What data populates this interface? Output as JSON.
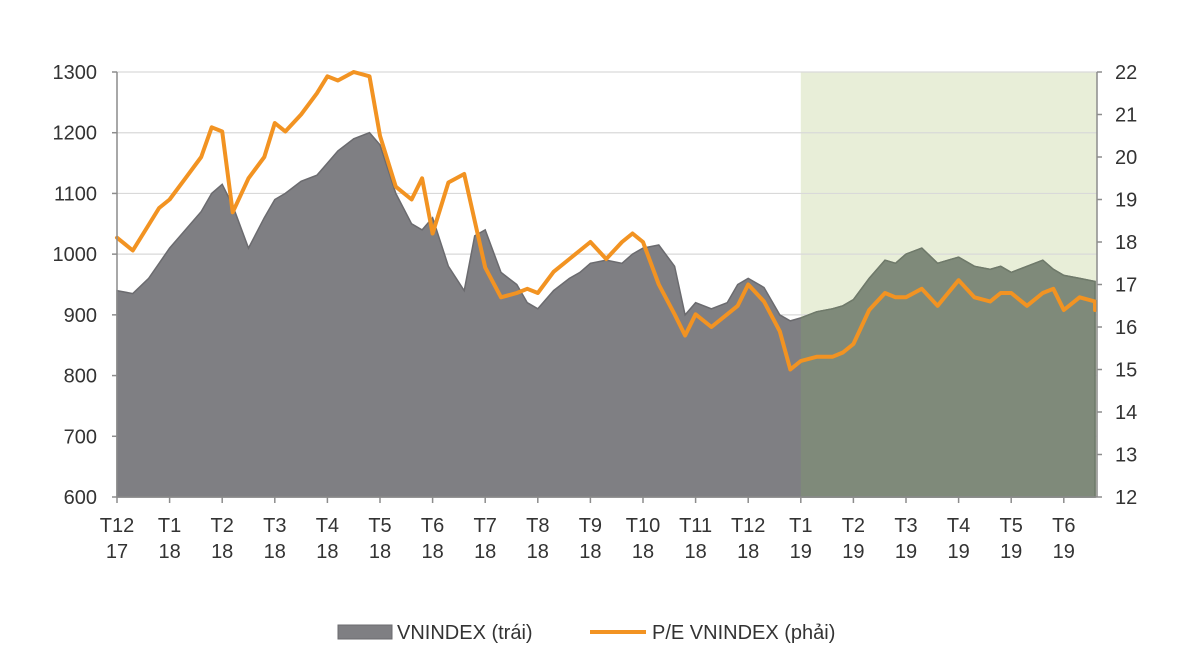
{
  "chart_data": {
    "type": "area",
    "title": "",
    "xlabel": "",
    "ylabel_left": "",
    "ylabel_right": "",
    "ylim_left": [
      600,
      1300
    ],
    "ylim_right": [
      12,
      22
    ],
    "grid": true,
    "legend_position": "bottom-center",
    "highlight_region": {
      "from": "T1 19",
      "to": "end",
      "color": "#e8eed8"
    },
    "colors": {
      "area": "#7f7f83",
      "area_shaded": "#7f8a7a",
      "line": "#f29322",
      "grid": "#d9d9d9",
      "highlight": "#e8eed8"
    },
    "left_axis_ticks": [
      "600",
      "700",
      "800",
      "900",
      "1000",
      "1100",
      "1200",
      "1300"
    ],
    "right_axis_ticks": [
      "12",
      "13",
      "14",
      "15",
      "16",
      "17",
      "18",
      "19",
      "20",
      "21",
      "22"
    ],
    "x_ticks": [
      {
        "line1": "T12",
        "line2": "17"
      },
      {
        "line1": "T1",
        "line2": "18"
      },
      {
        "line1": "T2",
        "line2": "18"
      },
      {
        "line1": "T3",
        "line2": "18"
      },
      {
        "line1": "T4",
        "line2": "18"
      },
      {
        "line1": "T5",
        "line2": "18"
      },
      {
        "line1": "T6",
        "line2": "18"
      },
      {
        "line1": "T7",
        "line2": "18"
      },
      {
        "line1": "T8",
        "line2": "18"
      },
      {
        "line1": "T9",
        "line2": "18"
      },
      {
        "line1": "T10",
        "line2": "18"
      },
      {
        "line1": "T11",
        "line2": "18"
      },
      {
        "line1": "T12",
        "line2": "18"
      },
      {
        "line1": "T1",
        "line2": "19"
      },
      {
        "line1": "T2",
        "line2": "19"
      },
      {
        "line1": "T3",
        "line2": "19"
      },
      {
        "line1": "T4",
        "line2": "19"
      },
      {
        "line1": "T5",
        "line2": "19"
      },
      {
        "line1": "T6",
        "line2": "19"
      }
    ],
    "x_months": [
      0,
      0.3,
      0.6,
      0.8,
      1.0,
      1.3,
      1.6,
      1.8,
      2.0,
      2.2,
      2.5,
      2.8,
      3.0,
      3.2,
      3.5,
      3.8,
      4.0,
      4.2,
      4.5,
      4.8,
      5.0,
      5.3,
      5.6,
      5.8,
      6.0,
      6.3,
      6.6,
      6.8,
      7.0,
      7.3,
      7.6,
      7.8,
      8.0,
      8.3,
      8.6,
      8.8,
      9.0,
      9.3,
      9.6,
      9.8,
      10.0,
      10.3,
      10.6,
      10.8,
      11.0,
      11.3,
      11.6,
      11.8,
      12.0,
      12.3,
      12.6,
      12.8,
      13.0,
      13.3,
      13.6,
      13.8,
      14.0,
      14.3,
      14.6,
      14.8,
      15.0,
      15.3,
      15.6,
      15.8,
      16.0,
      16.3,
      16.6,
      16.8,
      17.0,
      17.3,
      17.6,
      17.8,
      18.0,
      18.3,
      18.6,
      18.8
    ],
    "series": [
      {
        "name": "VNINDEX (trái)",
        "kind": "area",
        "axis": "left",
        "values": [
          940,
          935,
          960,
          985,
          1010,
          1040,
          1070,
          1100,
          1115,
          1080,
          1010,
          1060,
          1090,
          1100,
          1120,
          1130,
          1150,
          1170,
          1190,
          1200,
          1180,
          1100,
          1050,
          1040,
          1060,
          980,
          940,
          1030,
          1040,
          970,
          950,
          920,
          910,
          940,
          960,
          970,
          985,
          990,
          985,
          1000,
          1010,
          1015,
          980,
          900,
          920,
          910,
          920,
          950,
          960,
          945,
          900,
          890,
          895,
          905,
          910,
          915,
          925,
          960,
          990,
          985,
          1000,
          1010,
          985,
          990,
          995,
          980,
          975,
          980,
          970,
          980,
          990,
          975,
          965,
          960,
          955,
          950
        ]
      },
      {
        "name": "P/E VNINDEX (phải)",
        "kind": "line",
        "axis": "right",
        "values": [
          18.1,
          17.8,
          18.4,
          18.8,
          19.0,
          19.5,
          20.0,
          20.7,
          20.6,
          18.7,
          19.5,
          20.0,
          20.8,
          20.6,
          21.0,
          21.5,
          21.9,
          21.8,
          22.0,
          21.9,
          20.5,
          19.3,
          19.0,
          19.5,
          18.2,
          19.4,
          19.6,
          18.5,
          17.4,
          16.7,
          16.8,
          16.9,
          16.8,
          17.3,
          17.6,
          17.8,
          18.0,
          17.6,
          18.0,
          18.2,
          18.0,
          17.0,
          16.3,
          15.8,
          16.3,
          16.0,
          16.3,
          16.5,
          17.0,
          16.6,
          15.9,
          15.0,
          15.2,
          15.3,
          15.3,
          15.4,
          15.6,
          16.4,
          16.8,
          16.7,
          16.7,
          16.9,
          16.5,
          16.8,
          17.1,
          16.7,
          16.6,
          16.8,
          16.8,
          16.5,
          16.8,
          16.9,
          16.4,
          16.7,
          16.6,
          16.4
        ]
      }
    ]
  },
  "legend": [
    {
      "label": "VNINDEX (trái)",
      "marker": "area"
    },
    {
      "label": "P/E VNINDEX  (phải)",
      "marker": "line"
    }
  ]
}
